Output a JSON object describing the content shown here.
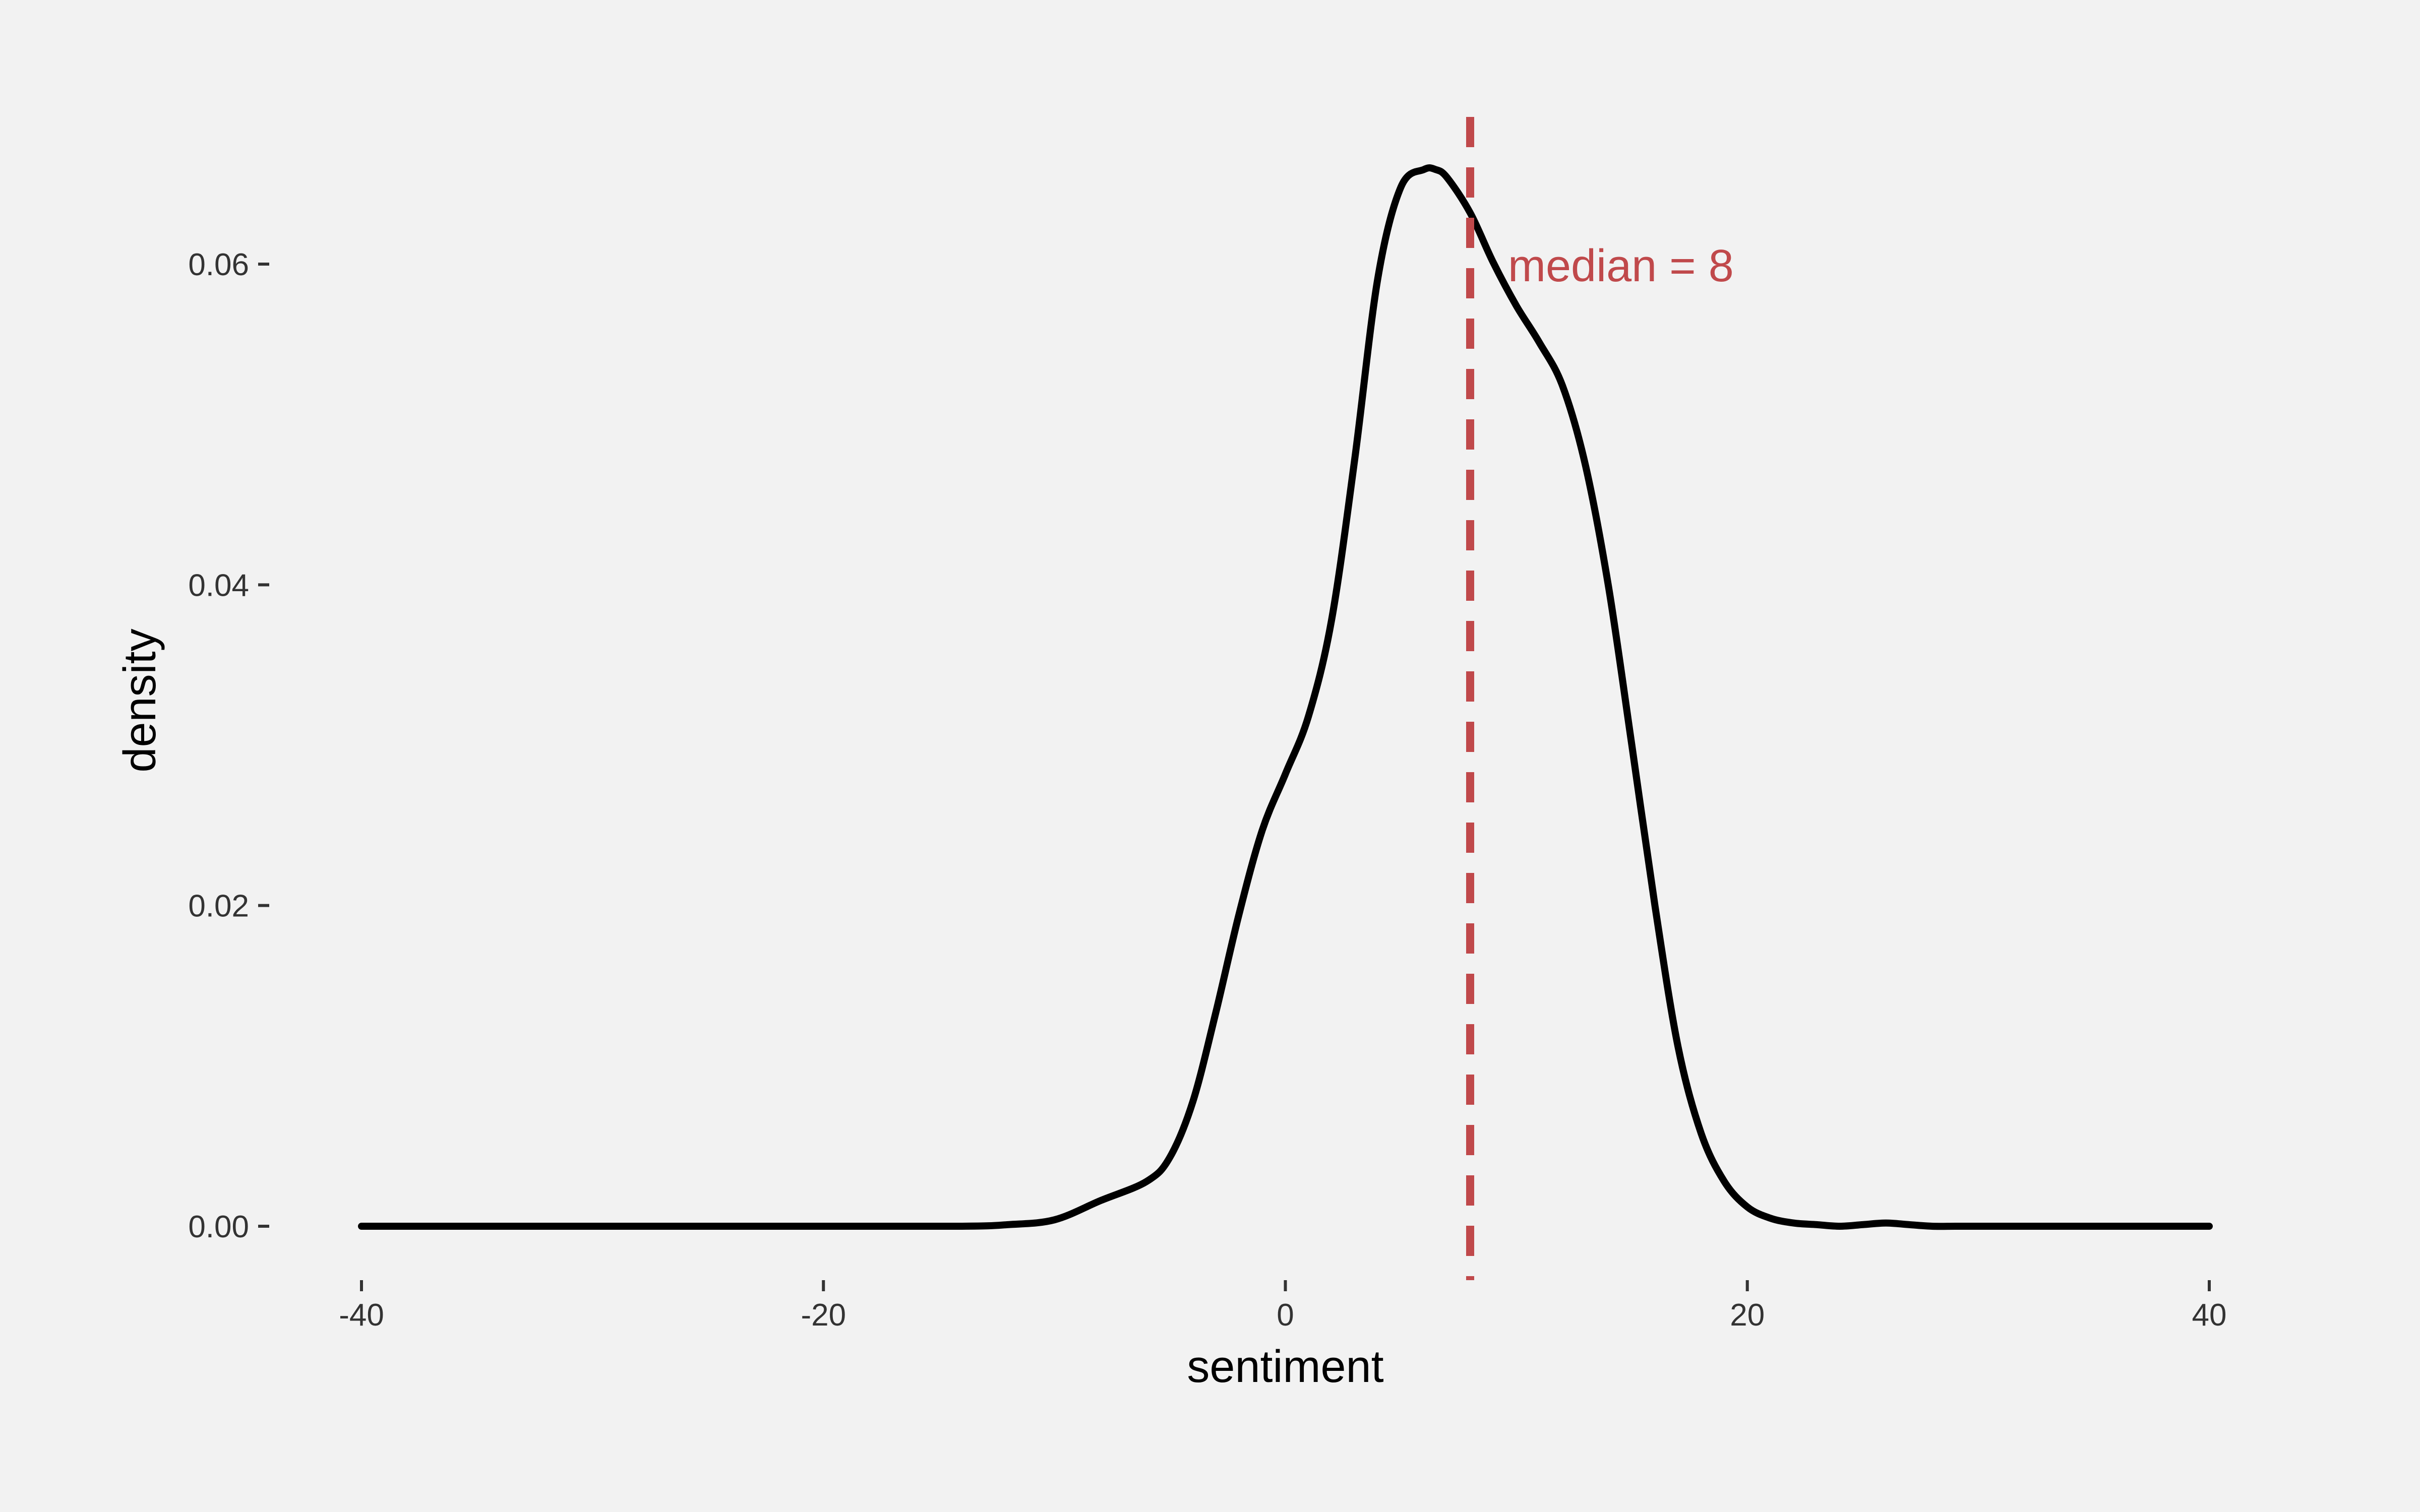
{
  "chart_data": {
    "type": "line",
    "title": "",
    "xlabel": "sentiment",
    "ylabel": "density",
    "xlim": [
      -40,
      40
    ],
    "ylim": [
      0,
      0.066
    ],
    "x_ticks": [
      {
        "value": -40,
        "label": "-40"
      },
      {
        "value": -20,
        "label": "-20"
      },
      {
        "value": 0,
        "label": "0"
      },
      {
        "value": 20,
        "label": "20"
      },
      {
        "value": 40,
        "label": "40"
      }
    ],
    "y_ticks": [
      {
        "value": 0.0,
        "label": "0.00"
      },
      {
        "value": 0.02,
        "label": "0.02"
      },
      {
        "value": 0.04,
        "label": "0.04"
      },
      {
        "value": 0.06,
        "label": "0.06"
      }
    ],
    "grid": false,
    "series": [
      {
        "color": "#000000",
        "x": [
          -40,
          -30,
          -20,
          -14,
          -12,
          -10,
          -8,
          -6,
          -5,
          -4,
          -3,
          -2,
          -1,
          0,
          1,
          2,
          3,
          4,
          5,
          6,
          6.5,
          7,
          8,
          9,
          10,
          11,
          12,
          13,
          14,
          15,
          16,
          17,
          18,
          19,
          20,
          21,
          22,
          23,
          24,
          25,
          26,
          27,
          28,
          29,
          30,
          31,
          32,
          33,
          34,
          35,
          36,
          38,
          40
        ],
        "y": [
          0,
          0,
          0,
          0,
          0.0001,
          0.0004,
          0.0016,
          0.0028,
          0.0043,
          0.0078,
          0.0134,
          0.0195,
          0.0247,
          0.0282,
          0.0318,
          0.0378,
          0.0478,
          0.0591,
          0.0648,
          0.0659,
          0.0659,
          0.0654,
          0.0632,
          0.0601,
          0.0574,
          0.0551,
          0.0524,
          0.0474,
          0.0398,
          0.03,
          0.02,
          0.0112,
          0.0058,
          0.0028,
          0.0012,
          0.0005,
          0.0002,
          0.0001,
          0.0,
          0.0001,
          0.0002,
          0.0001,
          0.0,
          0.0,
          0.0,
          0.0,
          0.0,
          0.0,
          0.0,
          0.0,
          0.0,
          0.0,
          0.0
        ]
      }
    ],
    "reference_line": {
      "x": 8,
      "color": "#c0494b",
      "style": "dashed",
      "label": "median =  8"
    }
  }
}
